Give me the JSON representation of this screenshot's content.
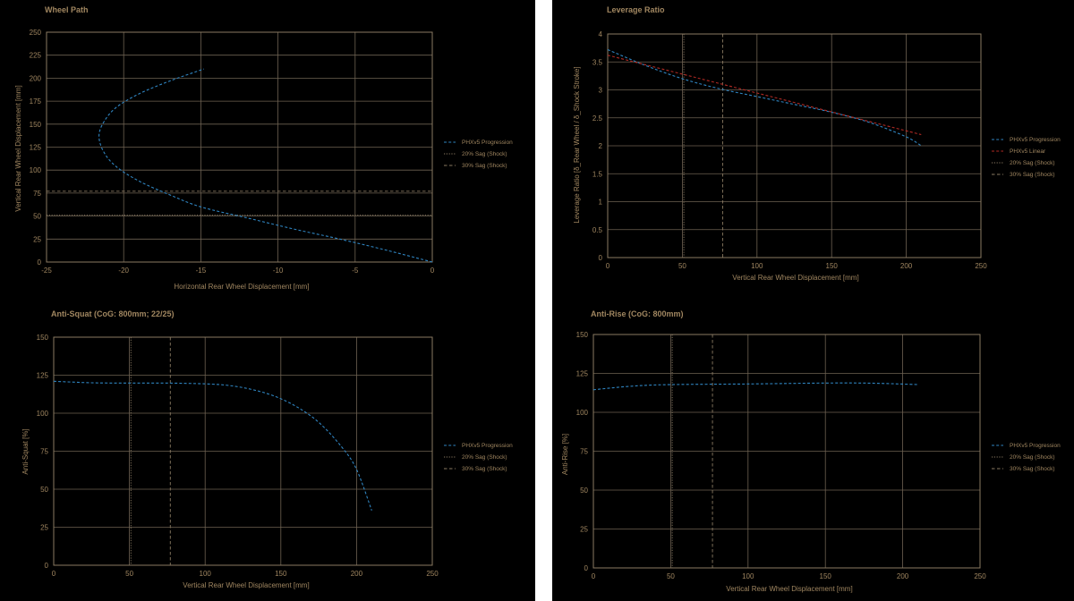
{
  "colors": {
    "background": "#000000",
    "frame": "#8a7a62",
    "grid": "#6e6252",
    "text": "#a08660",
    "series_blue": "#2f84c0",
    "series_red": "#b02a24",
    "sag_line": "#8a7a62"
  },
  "chart_data": [
    {
      "id": "wheel-path",
      "type": "line",
      "title": "Wheel Path",
      "xlabel": "Horizontal Rear Wheel Displacement [mm]",
      "ylabel": "Vertical Rear Wheel Displacement [mm]",
      "xlim": [
        -25,
        0
      ],
      "ylim": [
        0,
        250
      ],
      "xticks": [
        -25,
        -20,
        -15,
        -10,
        -5,
        0
      ],
      "yticks": [
        0,
        25,
        50,
        75,
        100,
        125,
        150,
        175,
        200,
        225,
        250
      ],
      "grid": true,
      "legend_position": "right",
      "series": [
        {
          "name": "PHXv5 Progression",
          "color": "#2f84c0",
          "style": "dashed",
          "x": [
            0,
            -3,
            -6,
            -9,
            -12,
            -15,
            -17,
            -19,
            -20.5,
            -21.3,
            -21.6,
            -21.3,
            -20.5,
            -19,
            -17,
            -14.8
          ],
          "y": [
            0,
            13,
            25,
            36,
            48,
            60,
            73,
            88,
            104,
            120,
            137,
            152,
            168,
            183,
            197,
            210
          ]
        }
      ],
      "hlines": [
        {
          "name": "20% Sag (Shock)",
          "y": 51,
          "style": "dotted"
        },
        {
          "name": "30% Sag (Shock)",
          "y": 77,
          "style": "dashed"
        }
      ]
    },
    {
      "id": "leverage-ratio",
      "type": "line",
      "title": "Leverage Ratio",
      "xlabel": "Vertical Rear Wheel Displacement [mm]",
      "ylabel": "Leverage Ratio [δ_Rear Wheel / δ_Shock Stroke]",
      "xlim": [
        0,
        250
      ],
      "ylim": [
        0,
        4
      ],
      "xticks": [
        0,
        50,
        100,
        150,
        200,
        250
      ],
      "yticks": [
        0,
        0.5,
        1,
        1.5,
        2,
        2.5,
        3,
        3.5,
        4
      ],
      "grid": true,
      "legend_position": "right",
      "series": [
        {
          "name": "PHXv5 Progression",
          "color": "#2f84c0",
          "style": "dashed",
          "x": [
            0,
            25,
            50,
            75,
            100,
            125,
            150,
            175,
            200,
            210
          ],
          "y": [
            3.72,
            3.44,
            3.2,
            3.02,
            2.88,
            2.74,
            2.6,
            2.42,
            2.16,
            2.0
          ]
        },
        {
          "name": "PHXv5 Linear",
          "color": "#b02a24",
          "style": "dashed",
          "x": [
            0,
            210
          ],
          "y": [
            3.62,
            2.2
          ]
        }
      ],
      "vlines": [
        {
          "name": "20% Sag (Shock)",
          "x": 51,
          "style": "dotted"
        },
        {
          "name": "30% Sag (Shock)",
          "x": 77,
          "style": "dashed"
        }
      ]
    },
    {
      "id": "anti-squat",
      "type": "line",
      "title": "Anti-Squat (CoG: 800mm; 22/25)",
      "xlabel": "Vertical Rear Wheel Displacement [mm]",
      "ylabel": "Anti-Squat [%]",
      "xlim": [
        0,
        250
      ],
      "ylim": [
        0,
        150
      ],
      "xticks": [
        0,
        50,
        100,
        150,
        200,
        250
      ],
      "yticks": [
        0,
        25,
        50,
        75,
        100,
        125,
        150
      ],
      "grid": true,
      "legend_position": "right",
      "series": [
        {
          "name": "PHXv5 Progression",
          "color": "#2f84c0",
          "style": "dashed",
          "x": [
            0,
            25,
            50,
            75,
            100,
            115,
            130,
            145,
            160,
            175,
            190,
            200,
            210
          ],
          "y": [
            121,
            120,
            119.8,
            119.8,
            119.3,
            118.3,
            115.8,
            111.5,
            104.5,
            94,
            78,
            63,
            36
          ]
        }
      ],
      "vlines": [
        {
          "name": "20% Sag (Shock)",
          "x": 51,
          "style": "dotted"
        },
        {
          "name": "30% Sag (Shock)",
          "x": 77,
          "style": "dashed"
        }
      ]
    },
    {
      "id": "anti-rise",
      "type": "line",
      "title": "Anti-Rise (CoG: 800mm)",
      "xlabel": "Vertical Rear Wheel Displacement [mm]",
      "ylabel": "Anti-Rise [%]",
      "xlim": [
        0,
        250
      ],
      "ylim": [
        0,
        150
      ],
      "xticks": [
        0,
        50,
        100,
        150,
        200,
        250
      ],
      "yticks": [
        0,
        25,
        50,
        75,
        100,
        125,
        150
      ],
      "grid": true,
      "legend_position": "right",
      "series": [
        {
          "name": "PHXv5 Progression",
          "color": "#2f84c0",
          "style": "dashed",
          "x": [
            0,
            25,
            50,
            100,
            150,
            180,
            210
          ],
          "y": [
            114.5,
            116.8,
            117.8,
            118.2,
            118.8,
            118.7,
            117.8
          ]
        }
      ],
      "vlines": [
        {
          "name": "20% Sag (Shock)",
          "x": 51,
          "style": "dotted"
        },
        {
          "name": "30% Sag (Shock)",
          "x": 77,
          "style": "dashed"
        }
      ]
    }
  ]
}
